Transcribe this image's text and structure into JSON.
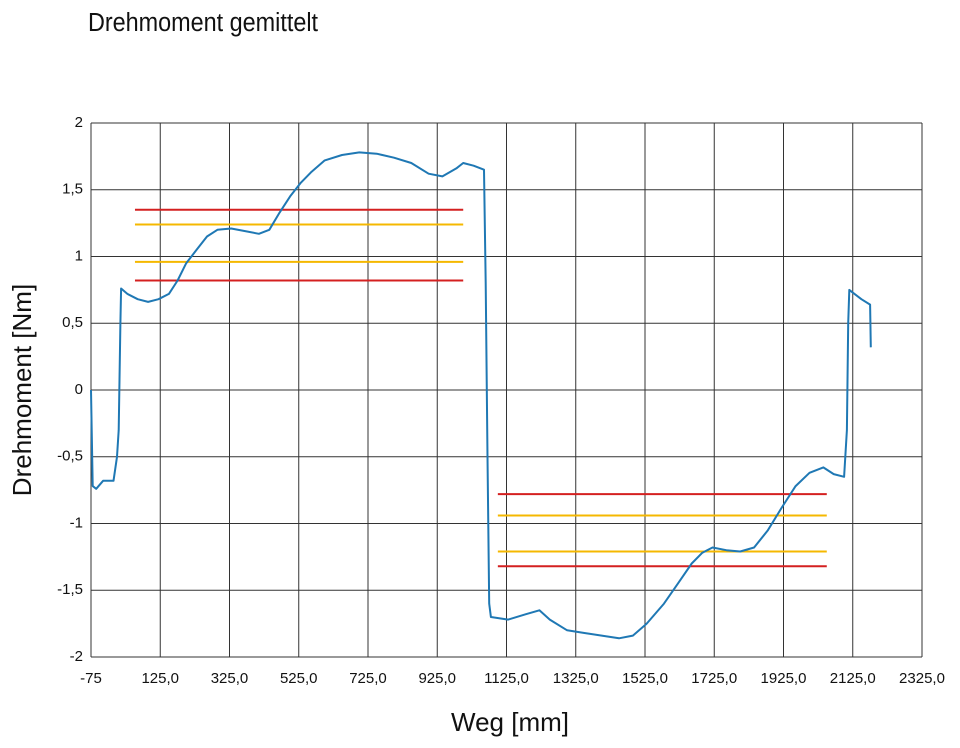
{
  "chart_data": {
    "type": "line",
    "title": "Drehmoment gemittelt",
    "x_label": "Weg [mm]",
    "y_label": "Drehmoment [Nm]",
    "xlim": [
      -75,
      2325
    ],
    "ylim": [
      -2,
      2
    ],
    "xticks": [
      -75,
      {
        "value": 125,
        "label": "125,0"
      },
      {
        "value": 325,
        "label": "325,0"
      },
      {
        "value": 525,
        "label": "525,0"
      },
      {
        "value": 725,
        "label": "725,0"
      },
      {
        "value": 925,
        "label": "925,0"
      },
      {
        "value": 1125,
        "label": "1125,0"
      },
      {
        "value": 1325,
        "label": "1325,0"
      },
      {
        "value": 1525,
        "label": "1525,0"
      },
      {
        "value": 1725,
        "label": "1725,0"
      },
      {
        "value": 1925,
        "label": "1925,0"
      },
      {
        "value": 2125,
        "label": "2125,0"
      },
      {
        "value": 2325,
        "label": "2325,0"
      }
    ],
    "yticks": [
      -2,
      {
        "value": -1.5,
        "label": "-1,5"
      },
      -1,
      {
        "value": -0.5,
        "label": "-0,5"
      },
      0,
      {
        "value": 0.5,
        "label": "0,5"
      },
      1,
      {
        "value": 1.5,
        "label": "1,5"
      },
      2
    ],
    "grid": true,
    "x": [
      -75,
      -73,
      -70,
      -60,
      -40,
      -10,
      0,
      5,
      10,
      12,
      30,
      60,
      90,
      120,
      150,
      175,
      200,
      230,
      260,
      290,
      330,
      370,
      410,
      440,
      470,
      500,
      530,
      560,
      600,
      650,
      700,
      750,
      800,
      850,
      900,
      940,
      980,
      1000,
      1030,
      1060,
      1065,
      1070,
      1075,
      1080,
      1130,
      1180,
      1220,
      1250,
      1300,
      1350,
      1400,
      1450,
      1490,
      1530,
      1580,
      1620,
      1660,
      1690,
      1720,
      1760,
      1800,
      1840,
      1880,
      1920,
      1960,
      2000,
      2040,
      2070,
      2100,
      2108,
      2112,
      2115,
      2150,
      2175,
      2177
    ],
    "series": [
      {
        "color": "#1f78b4",
        "values": [
          0,
          -0.3,
          -0.72,
          -0.74,
          -0.68,
          -0.68,
          -0.5,
          -0.3,
          0.5,
          0.76,
          0.72,
          0.68,
          0.66,
          0.68,
          0.72,
          0.82,
          0.95,
          1.05,
          1.15,
          1.2,
          1.21,
          1.19,
          1.17,
          1.2,
          1.33,
          1.45,
          1.55,
          1.63,
          1.72,
          1.76,
          1.78,
          1.77,
          1.74,
          1.7,
          1.62,
          1.6,
          1.66,
          1.7,
          1.68,
          1.65,
          0.8,
          -0.5,
          -1.6,
          -1.7,
          -1.72,
          -1.68,
          -1.65,
          -1.72,
          -1.8,
          -1.82,
          -1.84,
          -1.86,
          -1.84,
          -1.75,
          -1.6,
          -1.45,
          -1.3,
          -1.22,
          -1.18,
          -1.2,
          -1.21,
          -1.18,
          -1.05,
          -0.88,
          -0.72,
          -0.62,
          -0.58,
          -0.63,
          -0.65,
          -0.3,
          0.5,
          0.75,
          0.68,
          0.64,
          0.32
        ]
      }
    ],
    "reference_lines": [
      {
        "y": 1.35,
        "x_range": [
          52,
          1000
        ],
        "color": "#d42020"
      },
      {
        "y": 1.24,
        "x_range": [
          52,
          1000
        ],
        "color": "#f5b800"
      },
      {
        "y": 0.96,
        "x_range": [
          52,
          1000
        ],
        "color": "#f5b800"
      },
      {
        "y": 0.82,
        "x_range": [
          52,
          1000
        ],
        "color": "#d42020"
      },
      {
        "y": -0.78,
        "x_range": [
          1100,
          2050
        ],
        "color": "#d42020"
      },
      {
        "y": -0.94,
        "x_range": [
          1100,
          2050
        ],
        "color": "#f5b800"
      },
      {
        "y": -1.21,
        "x_range": [
          1100,
          2050
        ],
        "color": "#f5b800"
      },
      {
        "y": -1.32,
        "x_range": [
          1100,
          2050
        ],
        "color": "#d42020"
      }
    ]
  }
}
